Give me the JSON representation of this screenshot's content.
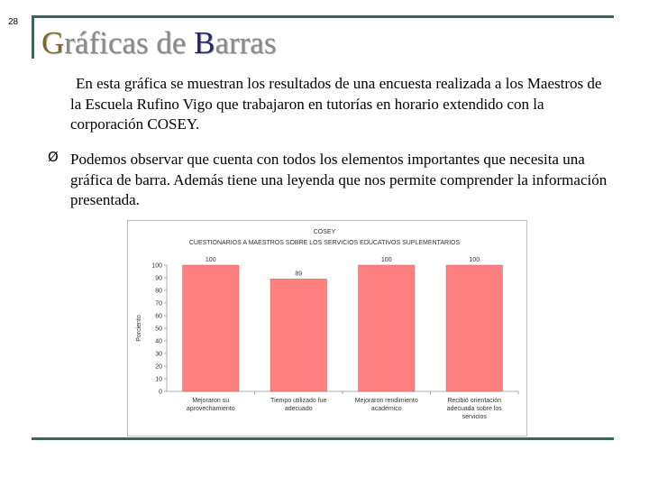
{
  "slide": {
    "page_number": "28",
    "title_first_g": "G",
    "title_mid": "ráficas de ",
    "title_b": "B",
    "title_end": "arras",
    "paragraph": "En esta gráfica se muestran los resultados de una encuesta realizada a los Maestros de la Escuela Rufino Vigo que trabajaron en tutorías en horario extendido con la corporación COSEY.",
    "bullet_symbol": "Ø",
    "bullet_text": "Podemos observar que cuenta con todos los elementos importantes que necesita una gráfica de barra.  Además tiene una leyenda que nos permite comprender la información presentada."
  },
  "colors": {
    "frame": "#2e6b61",
    "bar": "#ff8080",
    "bar_edge": "#c85a5a"
  },
  "chart_data": {
    "type": "bar",
    "title": "COSEY",
    "subtitle": "CUESTIONARIOS A MAESTROS SOBRE LOS SERVICIOS EDUCATIVOS SUPLEMENTARIOS",
    "ylabel": "Porciento",
    "xlabel": "",
    "ylim": [
      0,
      100
    ],
    "yticks": [
      "0",
      "10",
      "20",
      "30",
      "40",
      "50",
      "60",
      "70",
      "80",
      "90",
      "100"
    ],
    "categories": [
      [
        "Mejoraron su",
        "aprovechamiento"
      ],
      [
        "Tiempo utilizado fue",
        "adecuado"
      ],
      [
        "Mejoraron rendimiento",
        "académico"
      ],
      [
        "Recibió orientación",
        "adecuada sobre los",
        "servicios"
      ]
    ],
    "values": [
      100,
      89,
      100,
      100
    ],
    "data_labels": [
      "100",
      "89",
      "100",
      "100"
    ],
    "grid": false,
    "legend": "none"
  }
}
